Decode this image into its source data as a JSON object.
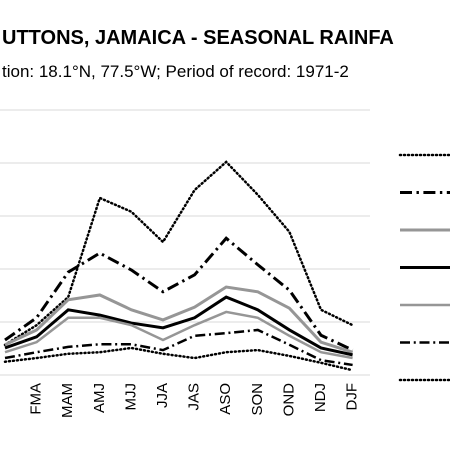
{
  "chart_data": {
    "type": "line",
    "title": "UTTONS, JAMAICA - SEASONAL RAINFA",
    "subtitle": "tion: 18.1°N, 77.5°W; Period of record: 1971-2",
    "categories": [
      null,
      "FMA",
      "MAM",
      "AMJ",
      "MJJ",
      "JJA",
      "JAS",
      "ASO",
      "SON",
      "OND",
      "NDJ",
      "DJF"
    ],
    "ylim": [
      0,
      5
    ],
    "grid": true,
    "series": [
      {
        "color": "#000000",
        "dash": "dotted",
        "width": 2.5,
        "values": [
          0.57,
          0.94,
          1.47,
          3.34,
          3.08,
          2.51,
          3.49,
          4.02,
          3.4,
          2.7,
          1.23,
          0.94
        ]
      },
      {
        "color": "#000000",
        "dash": "dashdot",
        "width": 3,
        "values": [
          0.66,
          1.08,
          1.94,
          2.3,
          1.98,
          1.57,
          1.89,
          2.58,
          2.08,
          1.6,
          0.75,
          0.47
        ]
      },
      {
        "color": "#969696",
        "dash": "solid",
        "width": 3,
        "values": [
          0.57,
          0.85,
          1.42,
          1.51,
          1.23,
          1.04,
          1.28,
          1.66,
          1.57,
          1.26,
          0.62,
          0.43
        ]
      },
      {
        "color": "#000000",
        "dash": "solid",
        "width": 3,
        "values": [
          0.51,
          0.72,
          1.23,
          1.13,
          0.98,
          0.89,
          1.08,
          1.47,
          1.23,
          0.85,
          0.51,
          0.38
        ]
      },
      {
        "color": "#969696",
        "dash": "solid",
        "width": 2.5,
        "values": [
          0.43,
          0.62,
          1.08,
          1.08,
          0.94,
          0.66,
          0.94,
          1.19,
          1.08,
          0.74,
          0.43,
          0.32
        ]
      },
      {
        "color": "#000000",
        "dash": "dashdot",
        "width": 2.5,
        "values": [
          0.32,
          0.43,
          0.53,
          0.58,
          0.58,
          0.47,
          0.74,
          0.79,
          0.85,
          0.57,
          0.28,
          0.19
        ]
      },
      {
        "color": "#000000",
        "dash": "dotted",
        "width": 2.5,
        "values": [
          0.25,
          0.32,
          0.4,
          0.43,
          0.51,
          0.4,
          0.32,
          0.43,
          0.47,
          0.36,
          0.23,
          0.09
        ]
      }
    ]
  }
}
